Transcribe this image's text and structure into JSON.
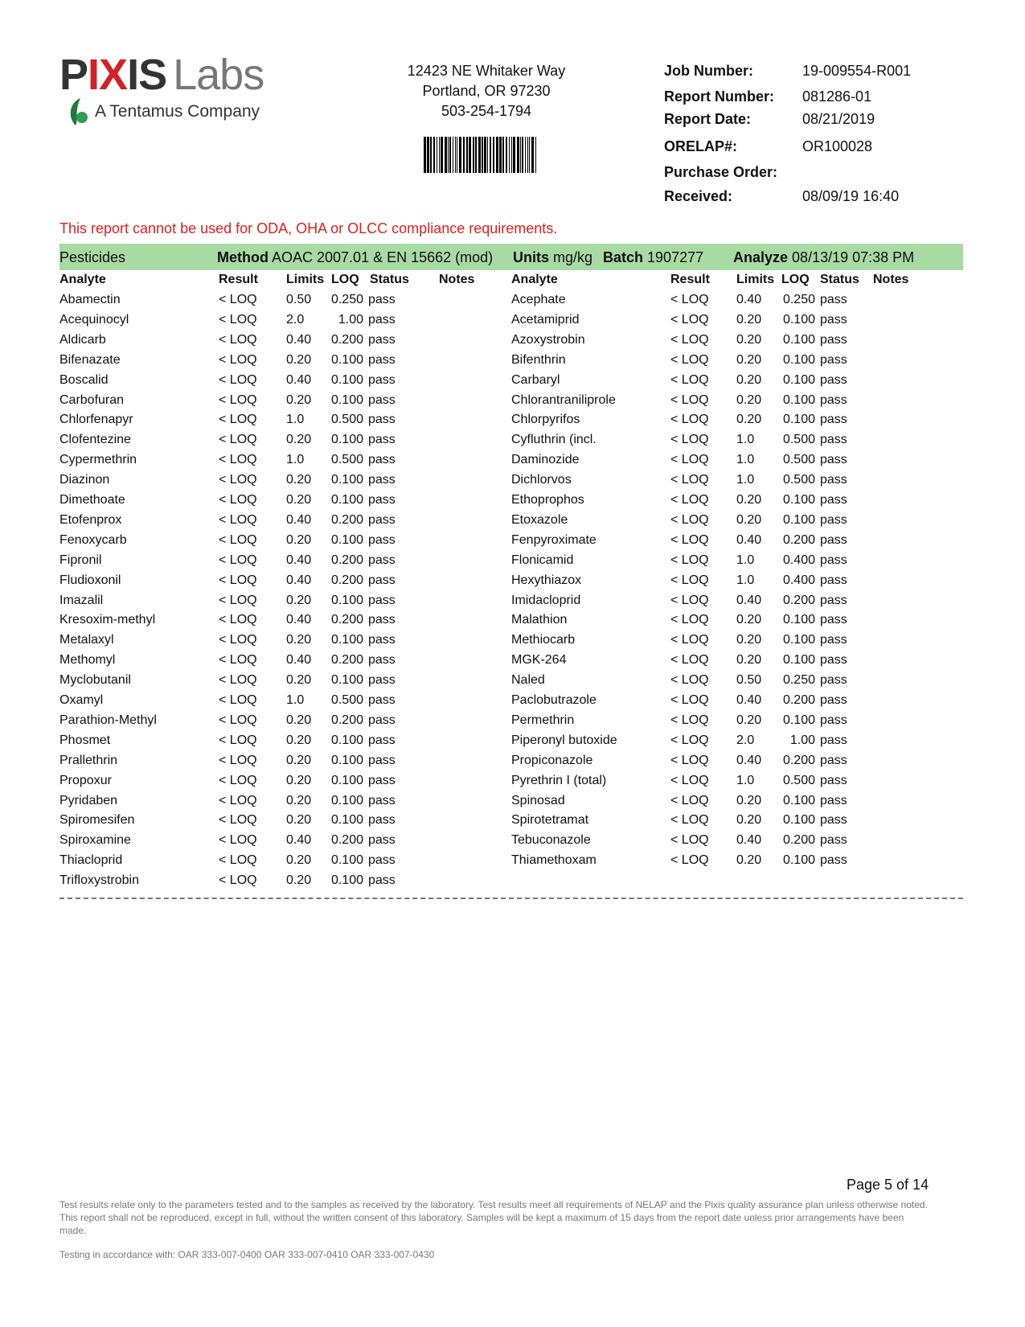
{
  "header": {
    "logo": {
      "brand_a": "PIXIS",
      "brand_b": "Labs",
      "tagline": "A Tentamus Company"
    },
    "address": [
      "12423 NE Whitaker Way",
      "Portland, OR 97230",
      "503-254-1794"
    ],
    "info": [
      {
        "label": "Job Number:",
        "value": "19-009554-R001"
      },
      {
        "label": "Report Number:",
        "value": "081286-01"
      },
      {
        "label": "Report Date:",
        "value": "08/21/2019"
      },
      {
        "label": "ORELAP#:",
        "value": "OR100028"
      },
      {
        "label": "Purchase Order:",
        "value": ""
      },
      {
        "label": "Received:",
        "value": "08/09/19  16:40"
      }
    ]
  },
  "warning": "This report cannot be used for ODA, OHA or OLCC compliance requirements.",
  "colors": {
    "warning": "#e0201a",
    "band": "#a8dba3"
  },
  "section": {
    "title": "Pesticides",
    "method_label": "Method",
    "method": "AOAC 2007.01 & EN 15662 (mod)",
    "units_label": "Units",
    "units": "mg/kg",
    "batch_label": "Batch",
    "batch": "1907277",
    "analyze_label": "Analyze",
    "analyze": "08/13/19  07:38 PM"
  },
  "columns": [
    "Analyte",
    "Result",
    "Limits",
    "LOQ",
    "Status",
    "Notes"
  ],
  "left_rows": [
    [
      "Abamectin",
      "< LOQ",
      "0.50",
      "0.250",
      "pass"
    ],
    [
      "Acequinocyl",
      "< LOQ",
      "2.0",
      "1.00",
      "pass"
    ],
    [
      "Aldicarb",
      "< LOQ",
      "0.40",
      "0.200",
      "pass"
    ],
    [
      "Bifenazate",
      "< LOQ",
      "0.20",
      "0.100",
      "pass"
    ],
    [
      "Boscalid",
      "< LOQ",
      "0.40",
      "0.100",
      "pass"
    ],
    [
      "Carbofuran",
      "< LOQ",
      "0.20",
      "0.100",
      "pass"
    ],
    [
      "Chlorfenapyr",
      "< LOQ",
      "1.0",
      "0.500",
      "pass"
    ],
    [
      "Clofentezine",
      "< LOQ",
      "0.20",
      "0.100",
      "pass"
    ],
    [
      "Cypermethrin",
      "< LOQ",
      "1.0",
      "0.500",
      "pass"
    ],
    [
      "Diazinon",
      "< LOQ",
      "0.20",
      "0.100",
      "pass"
    ],
    [
      "Dimethoate",
      "< LOQ",
      "0.20",
      "0.100",
      "pass"
    ],
    [
      "Etofenprox",
      "< LOQ",
      "0.40",
      "0.200",
      "pass"
    ],
    [
      "Fenoxycarb",
      "< LOQ",
      "0.20",
      "0.100",
      "pass"
    ],
    [
      "Fipronil",
      "< LOQ",
      "0.40",
      "0.200",
      "pass"
    ],
    [
      "Fludioxonil",
      "< LOQ",
      "0.40",
      "0.200",
      "pass"
    ],
    [
      "Imazalil",
      "< LOQ",
      "0.20",
      "0.100",
      "pass"
    ],
    [
      "Kresoxim-methyl",
      "< LOQ",
      "0.40",
      "0.200",
      "pass"
    ],
    [
      "Metalaxyl",
      "< LOQ",
      "0.20",
      "0.100",
      "pass"
    ],
    [
      "Methomyl",
      "< LOQ",
      "0.40",
      "0.200",
      "pass"
    ],
    [
      "Myclobutanil",
      "< LOQ",
      "0.20",
      "0.100",
      "pass"
    ],
    [
      "Oxamyl",
      "< LOQ",
      "1.0",
      "0.500",
      "pass"
    ],
    [
      "Parathion-Methyl",
      "< LOQ",
      "0.20",
      "0.200",
      "pass"
    ],
    [
      "Phosmet",
      "< LOQ",
      "0.20",
      "0.100",
      "pass"
    ],
    [
      "Prallethrin",
      "< LOQ",
      "0.20",
      "0.100",
      "pass"
    ],
    [
      "Propoxur",
      "< LOQ",
      "0.20",
      "0.100",
      "pass"
    ],
    [
      "Pyridaben",
      "< LOQ",
      "0.20",
      "0.100",
      "pass"
    ],
    [
      "Spiromesifen",
      "< LOQ",
      "0.20",
      "0.100",
      "pass"
    ],
    [
      "Spiroxamine",
      "< LOQ",
      "0.40",
      "0.200",
      "pass"
    ],
    [
      "Thiacloprid",
      "< LOQ",
      "0.20",
      "0.100",
      "pass"
    ],
    [
      "Trifloxystrobin",
      "< LOQ",
      "0.20",
      "0.100",
      "pass"
    ]
  ],
  "right_rows": [
    [
      "Acephate",
      "< LOQ",
      "0.40",
      "0.250",
      "pass"
    ],
    [
      "Acetamiprid",
      "< LOQ",
      "0.20",
      "0.100",
      "pass"
    ],
    [
      "Azoxystrobin",
      "< LOQ",
      "0.20",
      "0.100",
      "pass"
    ],
    [
      "Bifenthrin",
      "< LOQ",
      "0.20",
      "0.100",
      "pass"
    ],
    [
      "Carbaryl",
      "< LOQ",
      "0.20",
      "0.100",
      "pass"
    ],
    [
      "Chlorantraniliprole",
      "< LOQ",
      "0.20",
      "0.100",
      "pass"
    ],
    [
      "Chlorpyrifos",
      "< LOQ",
      "0.20",
      "0.100",
      "pass"
    ],
    [
      "Cyfluthrin (incl.",
      "< LOQ",
      "1.0",
      "0.500",
      "pass"
    ],
    [
      "Daminozide",
      "< LOQ",
      "1.0",
      "0.500",
      "pass"
    ],
    [
      "Dichlorvos",
      "< LOQ",
      "1.0",
      "0.500",
      "pass"
    ],
    [
      "Ethoprophos",
      "< LOQ",
      "0.20",
      "0.100",
      "pass"
    ],
    [
      "Etoxazole",
      "< LOQ",
      "0.20",
      "0.100",
      "pass"
    ],
    [
      "Fenpyroximate",
      "< LOQ",
      "0.40",
      "0.200",
      "pass"
    ],
    [
      "Flonicamid",
      "< LOQ",
      "1.0",
      "0.400",
      "pass"
    ],
    [
      "Hexythiazox",
      "< LOQ",
      "1.0",
      "0.400",
      "pass"
    ],
    [
      "Imidacloprid",
      "< LOQ",
      "0.40",
      "0.200",
      "pass"
    ],
    [
      "Malathion",
      "< LOQ",
      "0.20",
      "0.100",
      "pass"
    ],
    [
      "Methiocarb",
      "< LOQ",
      "0.20",
      "0.100",
      "pass"
    ],
    [
      "MGK-264",
      "< LOQ",
      "0.20",
      "0.100",
      "pass"
    ],
    [
      "Naled",
      "< LOQ",
      "0.50",
      "0.250",
      "pass"
    ],
    [
      "Paclobutrazole",
      "< LOQ",
      "0.40",
      "0.200",
      "pass"
    ],
    [
      "Permethrin",
      "< LOQ",
      "0.20",
      "0.100",
      "pass"
    ],
    [
      "Piperonyl butoxide",
      "< LOQ",
      "2.0",
      "1.00",
      "pass"
    ],
    [
      "Propiconazole",
      "< LOQ",
      "0.40",
      "0.200",
      "pass"
    ],
    [
      "Pyrethrin I (total)",
      "< LOQ",
      "1.0",
      "0.500",
      "pass"
    ],
    [
      "Spinosad",
      "< LOQ",
      "0.20",
      "0.100",
      "pass"
    ],
    [
      "Spirotetramat",
      "< LOQ",
      "0.20",
      "0.100",
      "pass"
    ],
    [
      "Tebuconazole",
      "< LOQ",
      "0.40",
      "0.200",
      "pass"
    ],
    [
      "Thiamethoxam",
      "< LOQ",
      "0.20",
      "0.100",
      "pass"
    ]
  ],
  "footer": {
    "page": "Page 5 of 14",
    "disclaimer": "Test results relate only to the parameters tested and to the samples as received by the laboratory. Test results meet all requirements of NELAP and the Pixis quality assurance plan unless otherwise noted. This report shall not be reproduced, except in full, without the written consent of this laboratory. Samples will be kept a maximum of 15 days from the report date unless prior arrangements have been made.",
    "testing": "Testing in accordance with:  OAR 333-007-0400 OAR 333-007-0410  OAR 333-007-0430"
  }
}
